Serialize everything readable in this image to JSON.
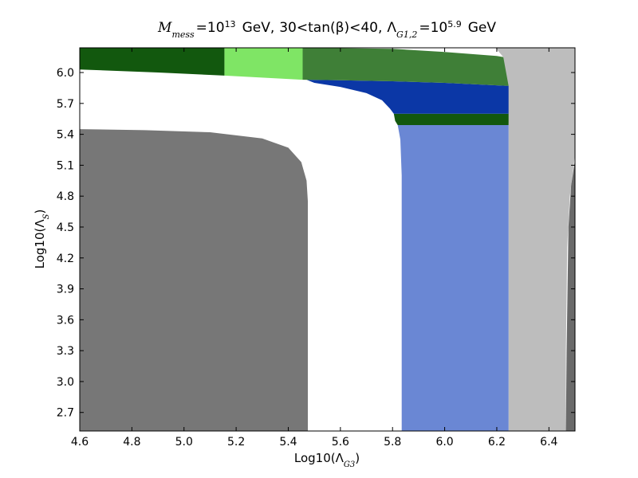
{
  "chart_data": {
    "type": "area",
    "title": {
      "mess_symbol": "M",
      "mess_sub": "mess",
      "eq1": "=",
      "ten1": "10",
      "exp1": "13",
      "gev1": "GeV,",
      "lower": "30",
      "lt1": "<",
      "tan": "tan(β)",
      "lt2": "<",
      "upper": "40,",
      "lambda": "Λ",
      "lambda_sub": "G1,2",
      "eq2": "=",
      "ten2": "10",
      "exp2": "5.9",
      "gev2": "GeV"
    },
    "xlabel": {
      "prefix": "Log10(",
      "symbol": "Λ",
      "sub": "G3",
      "suffix": ")"
    },
    "ylabel": {
      "prefix": "Log10(",
      "symbol": "Λ",
      "sub": "S",
      "suffix": ")"
    },
    "xlim": [
      4.6,
      6.5
    ],
    "ylim": [
      2.52,
      6.24
    ],
    "xticks": [
      "4.6",
      "4.8",
      "5.0",
      "5.2",
      "5.4",
      "5.6",
      "5.8",
      "6.0",
      "6.2",
      "6.4"
    ],
    "yticks": [
      "2.7",
      "3.0",
      "3.3",
      "3.6",
      "3.9",
      "4.2",
      "4.5",
      "4.8",
      "5.1",
      "5.4",
      "5.7",
      "6.0"
    ],
    "regions": [
      {
        "color": "#777777",
        "points": [
          [
            4.6,
            2.52
          ],
          [
            5.475,
            2.52
          ],
          [
            5.475,
            4.75
          ],
          [
            5.47,
            4.95
          ],
          [
            5.45,
            5.13
          ],
          [
            5.4,
            5.27
          ],
          [
            5.3,
            5.36
          ],
          [
            5.1,
            5.42
          ],
          [
            4.85,
            5.44
          ],
          [
            4.6,
            5.45
          ]
        ]
      },
      {
        "color": "#bdbdbd",
        "points": [
          [
            6.245,
            2.52
          ],
          [
            6.465,
            2.52
          ],
          [
            6.465,
            3.3
          ],
          [
            6.47,
            4.3
          ],
          [
            6.48,
            4.8
          ],
          [
            6.5,
            5.2
          ],
          [
            6.5,
            6.24
          ],
          [
            6.195,
            6.24
          ],
          [
            6.225,
            6.15
          ],
          [
            6.245,
            5.5
          ]
        ]
      },
      {
        "color": "#6a6a6a",
        "points": [
          [
            6.465,
            2.52
          ],
          [
            6.5,
            2.52
          ],
          [
            6.5,
            5.15
          ],
          [
            6.485,
            4.9
          ],
          [
            6.475,
            4.5
          ],
          [
            6.468,
            3.3
          ]
        ]
      },
      {
        "color": "#6a87d4",
        "points": [
          [
            5.835,
            2.52
          ],
          [
            6.245,
            2.52
          ],
          [
            6.245,
            5.49
          ],
          [
            5.82,
            5.49
          ],
          [
            5.83,
            5.35
          ],
          [
            5.835,
            5.0
          ]
        ]
      },
      {
        "color": "#12580e",
        "points": [
          [
            5.805,
            5.6
          ],
          [
            6.245,
            5.6
          ],
          [
            6.245,
            5.49
          ],
          [
            5.82,
            5.49
          ],
          [
            5.81,
            5.53
          ]
        ]
      },
      {
        "color": "#0b37a6",
        "points": [
          [
            5.47,
            5.93
          ],
          [
            5.6,
            5.925
          ],
          [
            5.8,
            5.915
          ],
          [
            6.0,
            5.9
          ],
          [
            6.245,
            5.87
          ],
          [
            6.245,
            5.6
          ],
          [
            5.805,
            5.6
          ],
          [
            5.79,
            5.65
          ],
          [
            5.76,
            5.73
          ],
          [
            5.7,
            5.8
          ],
          [
            5.6,
            5.86
          ],
          [
            5.5,
            5.9
          ]
        ]
      },
      {
        "color": "#3f7f37",
        "points": [
          [
            5.455,
            6.24
          ],
          [
            5.8,
            6.23
          ],
          [
            6.0,
            6.2
          ],
          [
            6.2,
            6.16
          ],
          [
            6.225,
            6.15
          ],
          [
            6.245,
            5.87
          ],
          [
            6.0,
            5.9
          ],
          [
            5.8,
            5.915
          ],
          [
            5.6,
            5.925
          ],
          [
            5.455,
            5.93
          ]
        ]
      },
      {
        "color": "#7fe565",
        "points": [
          [
            5.155,
            6.24
          ],
          [
            5.455,
            6.24
          ],
          [
            5.455,
            5.93
          ],
          [
            5.155,
            5.97
          ]
        ]
      },
      {
        "color": "#12580e",
        "points": [
          [
            4.6,
            6.24
          ],
          [
            5.155,
            6.24
          ],
          [
            5.155,
            5.97
          ],
          [
            4.9,
            6.0
          ],
          [
            4.6,
            6.03
          ]
        ]
      }
    ]
  }
}
